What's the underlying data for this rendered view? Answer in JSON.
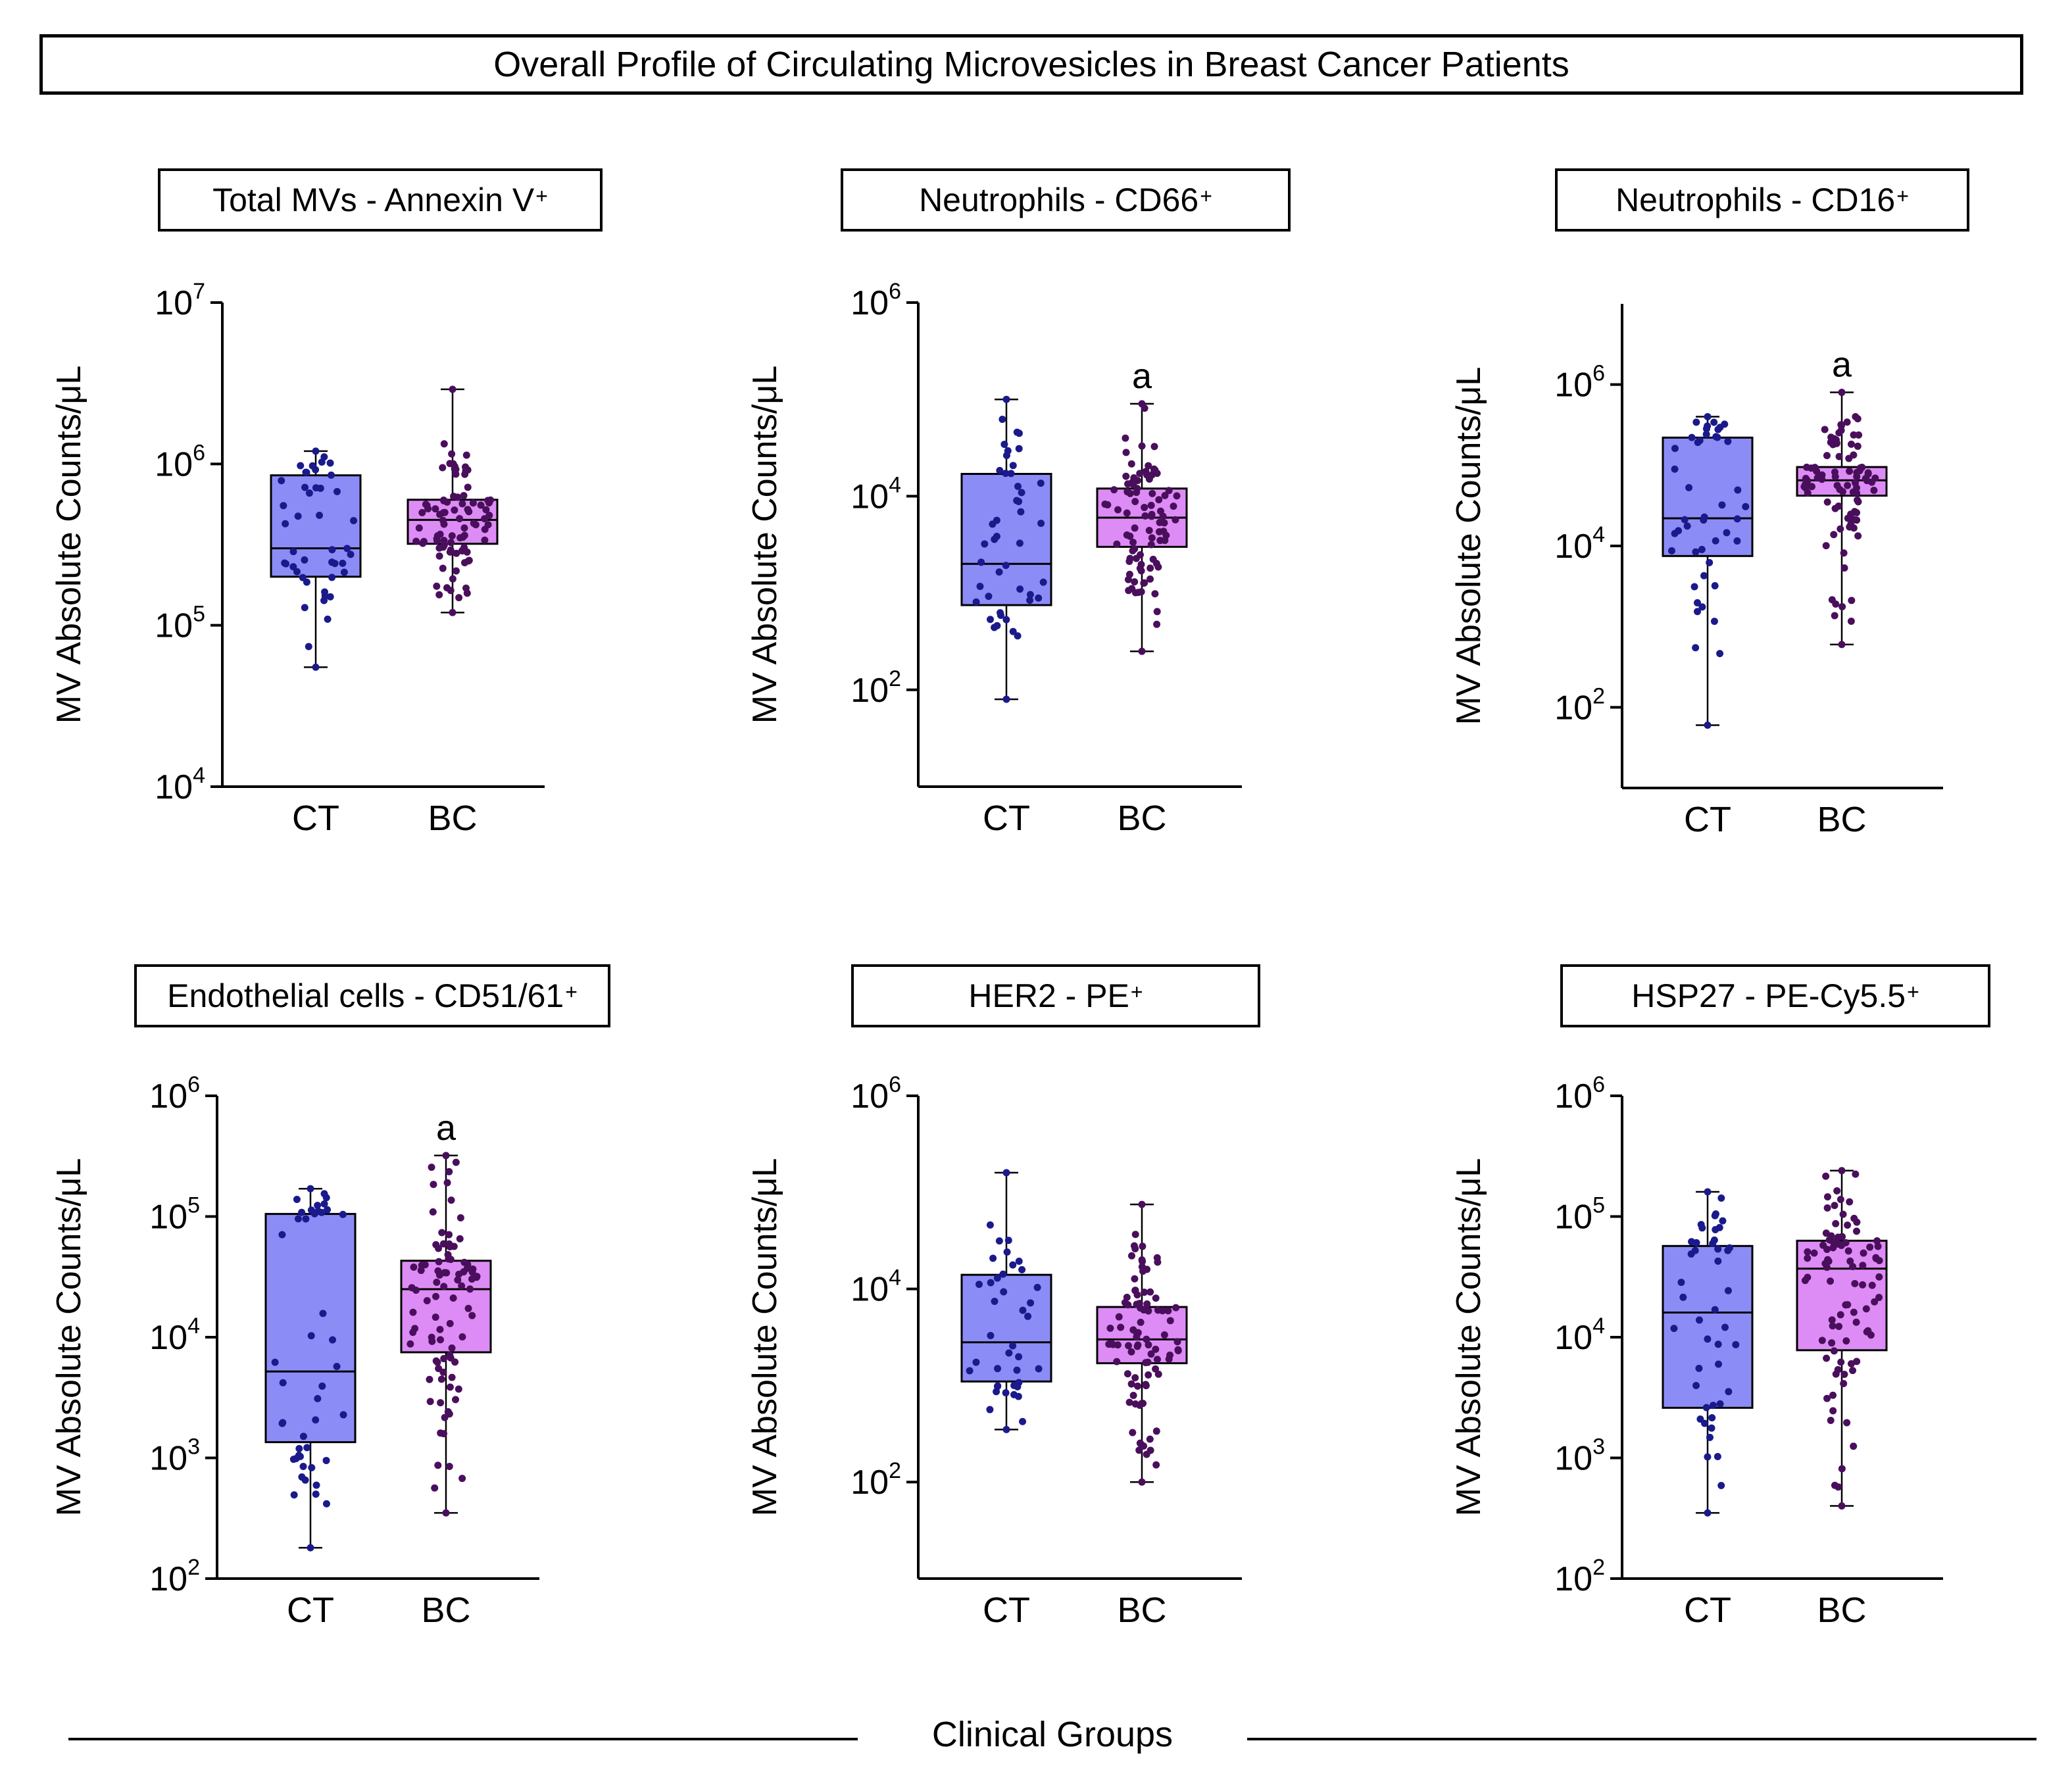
{
  "figure": {
    "title": "Overall Profile of Circulating Microvesicles in Breast Cancer Patients",
    "x_group_label": "Clinical Groups"
  },
  "colors": {
    "ct_box": "#8c8cf7",
    "bc_box": "#de8cf5",
    "ct_dot": "#1a1a8c",
    "bc_dot": "#4a0f5c",
    "axis": "#000000"
  },
  "chart_data": [
    {
      "type": "box",
      "title": "Total MVs - Annexin V",
      "title_superscript": "+",
      "ylabel": "MV Absolute Counts/μL",
      "xlabel": "",
      "yscale": "log10",
      "ylim": [
        10000,
        10000000
      ],
      "ytick_exponents": [
        4,
        5,
        6,
        7
      ],
      "categories": [
        "CT",
        "BC"
      ],
      "annotation": "",
      "series": [
        {
          "name": "CT",
          "min": 55000,
          "q1": 200000,
          "median": 300000,
          "q3": 850000,
          "max": 1200000,
          "n_points": 45
        },
        {
          "name": "BC",
          "min": 120000,
          "q1": 320000,
          "median": 450000,
          "q3": 600000,
          "max": 2900000,
          "n_points": 90
        }
      ]
    },
    {
      "type": "box",
      "title": "Neutrophils - CD66",
      "title_superscript": "+",
      "ylabel": "MV Absolute Counts/μL",
      "xlabel": "",
      "yscale": "log10",
      "ylim": [
        10,
        1000000
      ],
      "ytick_exponents": [
        2,
        4,
        6
      ],
      "categories": [
        "CT",
        "BC"
      ],
      "annotation": "a",
      "series": [
        {
          "name": "CT",
          "min": 80,
          "q1": 750,
          "median": 2000,
          "q3": 17000,
          "max": 100000,
          "n_points": 45
        },
        {
          "name": "BC",
          "min": 250,
          "q1": 3000,
          "median": 6000,
          "q3": 12000,
          "max": 90000,
          "n_points": 90
        }
      ]
    },
    {
      "type": "box",
      "title": "Neutrophils - CD16",
      "title_superscript": "+",
      "ylabel": "MV Absolute Counts/μL",
      "xlabel": "",
      "yscale": "log10",
      "ylim": [
        10,
        10000000
      ],
      "ytick_exponents": [
        2,
        4,
        6
      ],
      "categories": [
        "CT",
        "BC"
      ],
      "annotation": "a",
      "series": [
        {
          "name": "CT",
          "min": 60,
          "q1": 7500,
          "median": 22000,
          "q3": 220000,
          "max": 400000,
          "n_points": 45
        },
        {
          "name": "BC",
          "min": 600,
          "q1": 42000,
          "median": 65000,
          "q3": 95000,
          "max": 800000,
          "n_points": 90
        }
      ]
    },
    {
      "type": "box",
      "title": "Endothelial cells - CD51/61",
      "title_superscript": "+",
      "ylabel": "MV Absolute Counts/μL",
      "xlabel": "",
      "yscale": "log10",
      "ylim": [
        100,
        1000000
      ],
      "ytick_exponents": [
        2,
        3,
        4,
        5,
        6
      ],
      "categories": [
        "CT",
        "BC"
      ],
      "annotation": "a",
      "series": [
        {
          "name": "CT",
          "min": 180,
          "q1": 1350,
          "median": 5200,
          "q3": 105000,
          "max": 170000,
          "n_points": 45
        },
        {
          "name": "BC",
          "min": 350,
          "q1": 7500,
          "median": 25000,
          "q3": 43000,
          "max": 320000,
          "n_points": 90
        }
      ]
    },
    {
      "type": "box",
      "title": "HER2 - PE",
      "title_superscript": "+",
      "ylabel": "MV Absolute Counts/μL",
      "xlabel": "",
      "yscale": "log10",
      "ylim": [
        10,
        1000000
      ],
      "ytick_exponents": [
        2,
        4,
        6
      ],
      "categories": [
        "CT",
        "BC"
      ],
      "annotation": "",
      "series": [
        {
          "name": "CT",
          "min": 350,
          "q1": 1100,
          "median": 2800,
          "q3": 14000,
          "max": 160000,
          "n_points": 40
        },
        {
          "name": "BC",
          "min": 100,
          "q1": 1700,
          "median": 3000,
          "q3": 6500,
          "max": 75000,
          "n_points": 90
        }
      ]
    },
    {
      "type": "box",
      "title": "HSP27 - PE-Cy5.5",
      "title_superscript": "+",
      "ylabel": "MV Absolute Counts/μL",
      "xlabel": "",
      "yscale": "log10",
      "ylim": [
        100,
        1000000
      ],
      "ytick_exponents": [
        2,
        3,
        4,
        5,
        6
      ],
      "categories": [
        "CT",
        "BC"
      ],
      "annotation": "",
      "series": [
        {
          "name": "CT",
          "min": 350,
          "q1": 2600,
          "median": 16000,
          "q3": 57000,
          "max": 160000,
          "n_points": 45
        },
        {
          "name": "BC",
          "min": 400,
          "q1": 7800,
          "median": 37000,
          "q3": 63000,
          "max": 240000,
          "n_points": 90
        }
      ]
    }
  ]
}
